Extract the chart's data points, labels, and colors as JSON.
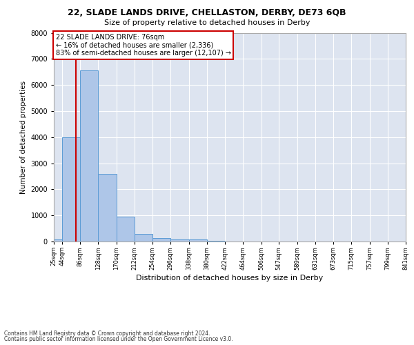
{
  "title": "22, SLADE LANDS DRIVE, CHELLASTON, DERBY, DE73 6QB",
  "subtitle": "Size of property relative to detached houses in Derby",
  "xlabel": "Distribution of detached houses by size in Derby",
  "ylabel": "Number of detached properties",
  "footnote1": "Contains HM Land Registry data © Crown copyright and database right 2024.",
  "footnote2": "Contains public sector information licensed under the Open Government Licence v3.0.",
  "bin_edges": [
    25,
    44,
    86,
    128,
    170,
    212,
    254,
    296,
    338,
    380,
    422,
    464,
    506,
    547,
    589,
    631,
    673,
    715,
    757,
    799,
    841
  ],
  "bin_labels": [
    "25sqm",
    "44sqm",
    "86sqm",
    "128sqm",
    "170sqm",
    "212sqm",
    "254sqm",
    "296sqm",
    "338sqm",
    "380sqm",
    "422sqm",
    "464sqm",
    "506sqm",
    "547sqm",
    "589sqm",
    "631sqm",
    "673sqm",
    "715sqm",
    "757sqm",
    "799sqm",
    "841sqm"
  ],
  "bar_heights": [
    75,
    4000,
    6550,
    2600,
    950,
    300,
    125,
    90,
    75,
    30,
    10,
    5,
    2,
    1,
    0,
    0,
    0,
    0,
    0,
    0
  ],
  "bar_color": "#aec6e8",
  "bar_edgecolor": "#5b9bd5",
  "property_size": 76,
  "property_label": "22 SLADE LANDS DRIVE: 76sqm",
  "pct_smaller": 16,
  "n_smaller": 2336,
  "pct_larger_semi": 83,
  "n_larger_semi": 12107,
  "vline_color": "#cc0000",
  "annotation_box_edgecolor": "#cc0000",
  "background_color": "#ffffff",
  "plot_background": "#dde4f0",
  "grid_color": "#ffffff",
  "ylim": [
    0,
    8000
  ],
  "yticks": [
    0,
    1000,
    2000,
    3000,
    4000,
    5000,
    6000,
    7000,
    8000
  ]
}
